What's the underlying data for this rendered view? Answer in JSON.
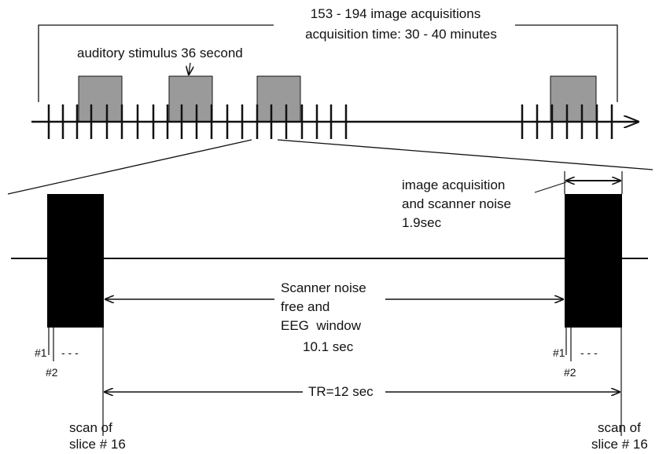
{
  "top_timeline": {
    "acquisitions_label": "153 - 194 image acquisitions",
    "acquisition_time_label": "acquisition time: 30 - 40 minutes",
    "stimulus_label": "auditory stimulus 36 second"
  },
  "detail_timeline": {
    "image_acq_line1": "image acquisition",
    "image_acq_line2": "and scanner noise",
    "image_acq_duration": "1.9sec",
    "noise_free_line1": "Scanner noise",
    "noise_free_line2": "free and",
    "noise_free_line3": "EEG  window",
    "noise_free_duration": "10.1 sec",
    "tr_label": "TR=12 sec",
    "slice1_label": "#1",
    "slice2_label": "#2",
    "slice_dash": "- - -",
    "scan_line1": "scan of",
    "scan_line2": "slice # 16"
  },
  "colors": {
    "line": "#111111",
    "stimulus_fill": "#9a9a9a",
    "acquisition_block": "#000000"
  }
}
